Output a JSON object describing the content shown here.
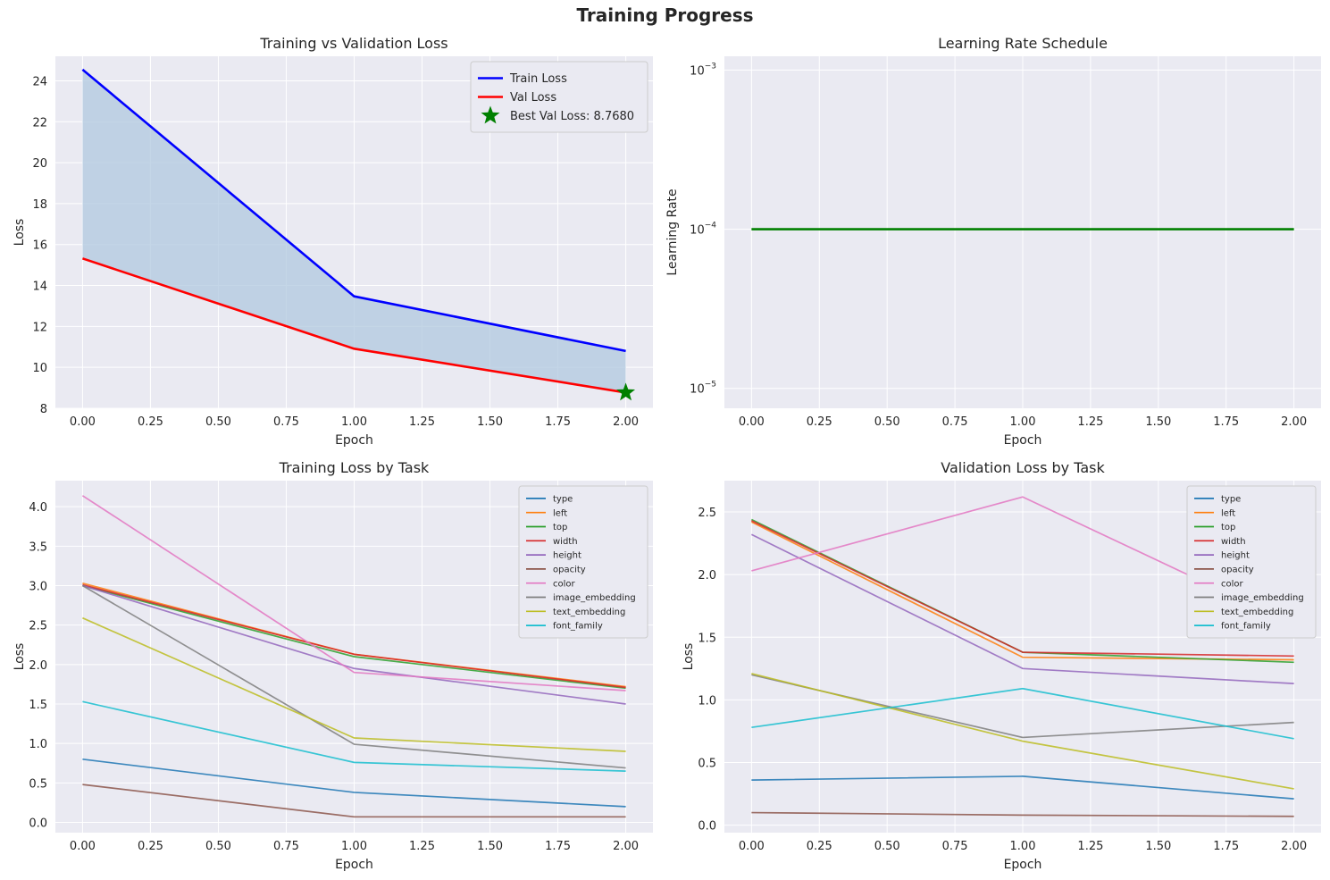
{
  "figure": {
    "title": "Training Progress"
  },
  "chart_data": [
    {
      "type": "line",
      "title": "Training vs Validation Loss",
      "xlabel": "Epoch",
      "ylabel": "Loss",
      "xlim": [
        -0.1,
        2.1
      ],
      "ylim": [
        8,
        25.2
      ],
      "xticks": [
        0.0,
        0.25,
        0.5,
        0.75,
        1.0,
        1.25,
        1.5,
        1.75,
        2.0
      ],
      "xtick_labels": [
        "0.00",
        "0.25",
        "0.50",
        "0.75",
        "1.00",
        "1.25",
        "1.50",
        "1.75",
        "2.00"
      ],
      "yticks": [
        8,
        10,
        12,
        14,
        16,
        18,
        20,
        22,
        24
      ],
      "ytick_labels": [
        "8",
        "10",
        "12",
        "14",
        "16",
        "18",
        "20",
        "22",
        "24"
      ],
      "grid": true,
      "legend": "top-right",
      "x": [
        0,
        1,
        2
      ],
      "series": [
        {
          "name": "Train Loss",
          "values": [
            24.55,
            13.47,
            10.8
          ],
          "color": "#0000ff"
        },
        {
          "name": "Val Loss",
          "values": [
            15.32,
            10.91,
            8.768
          ],
          "color": "#ff0000"
        }
      ],
      "fill_between": {
        "color": "#b0c8df",
        "between": [
          "Train Loss",
          "Val Loss"
        ]
      },
      "annotations": [
        {
          "name": "Best Val Loss: 8.7680",
          "marker": "star",
          "x": 2,
          "y": 8.768,
          "color": "#008000"
        }
      ]
    },
    {
      "type": "line",
      "title": "Learning Rate Schedule",
      "xlabel": "Epoch",
      "ylabel": "Learning Rate",
      "yscale": "log",
      "xlim": [
        -0.1,
        2.1
      ],
      "ylim": [
        7.5e-06,
        0.00122
      ],
      "xticks": [
        0.0,
        0.25,
        0.5,
        0.75,
        1.0,
        1.25,
        1.5,
        1.75,
        2.0
      ],
      "xtick_labels": [
        "0.00",
        "0.25",
        "0.50",
        "0.75",
        "1.00",
        "1.25",
        "1.50",
        "1.75",
        "2.00"
      ],
      "yticks": [
        1e-05,
        0.0001,
        0.001
      ],
      "ytick_labels": [
        [
          "10",
          "−5"
        ],
        [
          "10",
          "−4"
        ],
        [
          "10",
          "−3"
        ]
      ],
      "grid": true,
      "x": [
        0,
        1,
        2
      ],
      "series": [
        {
          "values": [
            0.0001,
            0.0001,
            0.0001
          ],
          "color": "#008000"
        }
      ]
    },
    {
      "type": "line",
      "title": "Training Loss by Task",
      "xlabel": "Epoch",
      "ylabel": "Loss",
      "xlim": [
        -0.1,
        2.1
      ],
      "ylim": [
        -0.13,
        4.33
      ],
      "xticks": [
        0.0,
        0.25,
        0.5,
        0.75,
        1.0,
        1.25,
        1.5,
        1.75,
        2.0
      ],
      "xtick_labels": [
        "0.00",
        "0.25",
        "0.50",
        "0.75",
        "1.00",
        "1.25",
        "1.50",
        "1.75",
        "2.00"
      ],
      "yticks": [
        0.0,
        0.5,
        1.0,
        1.5,
        2.0,
        2.5,
        3.0,
        3.5,
        4.0
      ],
      "ytick_labels": [
        "0.0",
        "0.5",
        "1.0",
        "1.5",
        "2.0",
        "2.5",
        "3.0",
        "3.5",
        "4.0"
      ],
      "grid": true,
      "legend": "top-right",
      "x": [
        0,
        1,
        2
      ],
      "series": [
        {
          "name": "type",
          "values": [
            0.8,
            0.38,
            0.2
          ],
          "color": "#1f77b4"
        },
        {
          "name": "left",
          "values": [
            3.03,
            2.13,
            1.72
          ],
          "color": "#ff7f0e"
        },
        {
          "name": "top",
          "values": [
            3.0,
            2.1,
            1.7
          ],
          "color": "#2ca02c"
        },
        {
          "name": "width",
          "values": [
            3.01,
            2.13,
            1.71
          ],
          "color": "#d62728"
        },
        {
          "name": "height",
          "values": [
            3.0,
            1.95,
            1.5
          ],
          "color": "#9467bd"
        },
        {
          "name": "opacity",
          "values": [
            0.48,
            0.07,
            0.07
          ],
          "color": "#8c564b"
        },
        {
          "name": "color",
          "values": [
            4.14,
            1.9,
            1.67
          ],
          "color": "#e377c2"
        },
        {
          "name": "image_embedding",
          "values": [
            3.0,
            0.99,
            0.69
          ],
          "color": "#7f7f7f"
        },
        {
          "name": "text_embedding",
          "values": [
            2.59,
            1.07,
            0.9
          ],
          "color": "#bcbd22"
        },
        {
          "name": "font_family",
          "values": [
            1.53,
            0.76,
            0.65
          ],
          "color": "#17becf"
        }
      ]
    },
    {
      "type": "line",
      "title": "Validation Loss by Task",
      "xlabel": "Epoch",
      "ylabel": "Loss",
      "xlim": [
        -0.1,
        2.1
      ],
      "ylim": [
        -0.06,
        2.75
      ],
      "xticks": [
        0.0,
        0.25,
        0.5,
        0.75,
        1.0,
        1.25,
        1.5,
        1.75,
        2.0
      ],
      "xtick_labels": [
        "0.00",
        "0.25",
        "0.50",
        "0.75",
        "1.00",
        "1.25",
        "1.50",
        "1.75",
        "2.00"
      ],
      "yticks": [
        0.0,
        0.5,
        1.0,
        1.5,
        2.0,
        2.5
      ],
      "ytick_labels": [
        "0.0",
        "0.5",
        "1.0",
        "1.5",
        "2.0",
        "2.5"
      ],
      "grid": true,
      "legend": "top-right",
      "x": [
        0,
        1,
        2
      ],
      "series": [
        {
          "name": "type",
          "values": [
            0.36,
            0.39,
            0.21
          ],
          "color": "#1f77b4"
        },
        {
          "name": "left",
          "values": [
            2.42,
            1.34,
            1.32
          ],
          "color": "#ff7f0e"
        },
        {
          "name": "top",
          "values": [
            2.44,
            1.38,
            1.3
          ],
          "color": "#2ca02c"
        },
        {
          "name": "width",
          "values": [
            2.43,
            1.38,
            1.35
          ],
          "color": "#d62728"
        },
        {
          "name": "height",
          "values": [
            2.32,
            1.25,
            1.13
          ],
          "color": "#9467bd"
        },
        {
          "name": "opacity",
          "values": [
            0.1,
            0.08,
            0.07
          ],
          "color": "#8c564b"
        },
        {
          "name": "color",
          "values": [
            2.03,
            2.62,
            1.6
          ],
          "color": "#e377c2"
        },
        {
          "name": "image_embedding",
          "values": [
            1.2,
            0.7,
            0.82
          ],
          "color": "#7f7f7f"
        },
        {
          "name": "text_embedding",
          "values": [
            1.21,
            0.67,
            0.29
          ],
          "color": "#bcbd22"
        },
        {
          "name": "font_family",
          "values": [
            0.78,
            1.09,
            0.69
          ],
          "color": "#17becf"
        }
      ]
    }
  ]
}
